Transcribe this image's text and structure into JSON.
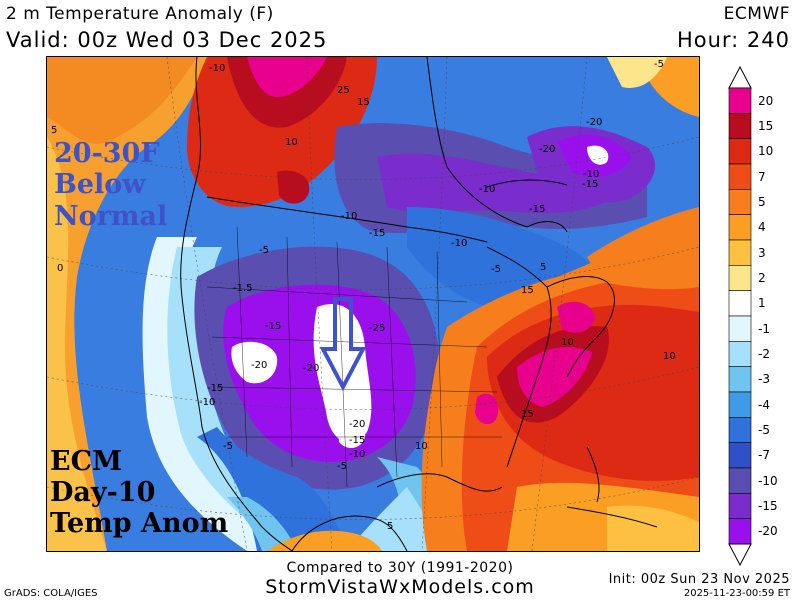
{
  "header": {
    "title": "2 m Temperature Anomaly (F)",
    "valid": "Valid: 00z Wed 03 Dec 2025",
    "model": "ECMWF",
    "hour": "Hour: 240"
  },
  "overlay": {
    "anomaly_line1": "20-30F",
    "anomaly_line2": "Below",
    "anomaly_line3": "Normal",
    "model_line1": "ECM",
    "model_line2": "Day-10",
    "model_line3": "Temp Anom"
  },
  "colorbar": {
    "levels": [
      "20",
      "15",
      "10",
      "7",
      "5",
      "4",
      "3",
      "2",
      "1",
      "-1",
      "-2",
      "-3",
      "-4",
      "-5",
      "-7",
      "-10",
      "-15",
      "-20"
    ],
    "colors": [
      "#e8008c",
      "#b80d1e",
      "#dc2a14",
      "#ee4d18",
      "#f77e1c",
      "#fb9f24",
      "#fdc040",
      "#fde58c",
      "#ffffff",
      "#e2f6fd",
      "#a7e0fa",
      "#6fc4f0",
      "#3f9be6",
      "#2f72dc",
      "#3050c8",
      "#5a4eb0",
      "#7a2ccc",
      "#9a10ec"
    ]
  },
  "map_labels": [
    "-10",
    "-5",
    "25",
    "15",
    "10",
    "5",
    "-5",
    "-10",
    "-20",
    "-15",
    "-10",
    "-15",
    "-10",
    "-5",
    "5",
    "15",
    "15",
    "10",
    "-5",
    "-15",
    "-25",
    "-20",
    "-20",
    "-15",
    "-10",
    "5",
    "10",
    "15",
    "-10",
    "-5",
    "-15",
    "-5",
    "-10",
    "-5",
    "10",
    "5",
    "-1.5"
  ],
  "footer": {
    "compared": "Compared to 30Y (1991-2020)",
    "site": "StormVistaWxModels.com",
    "grads": "GrADS: COLA/IGES",
    "init": "Init: 00z Sun 23 Nov 2025",
    "timestamp": "2025-11-23-00:59 ET"
  }
}
